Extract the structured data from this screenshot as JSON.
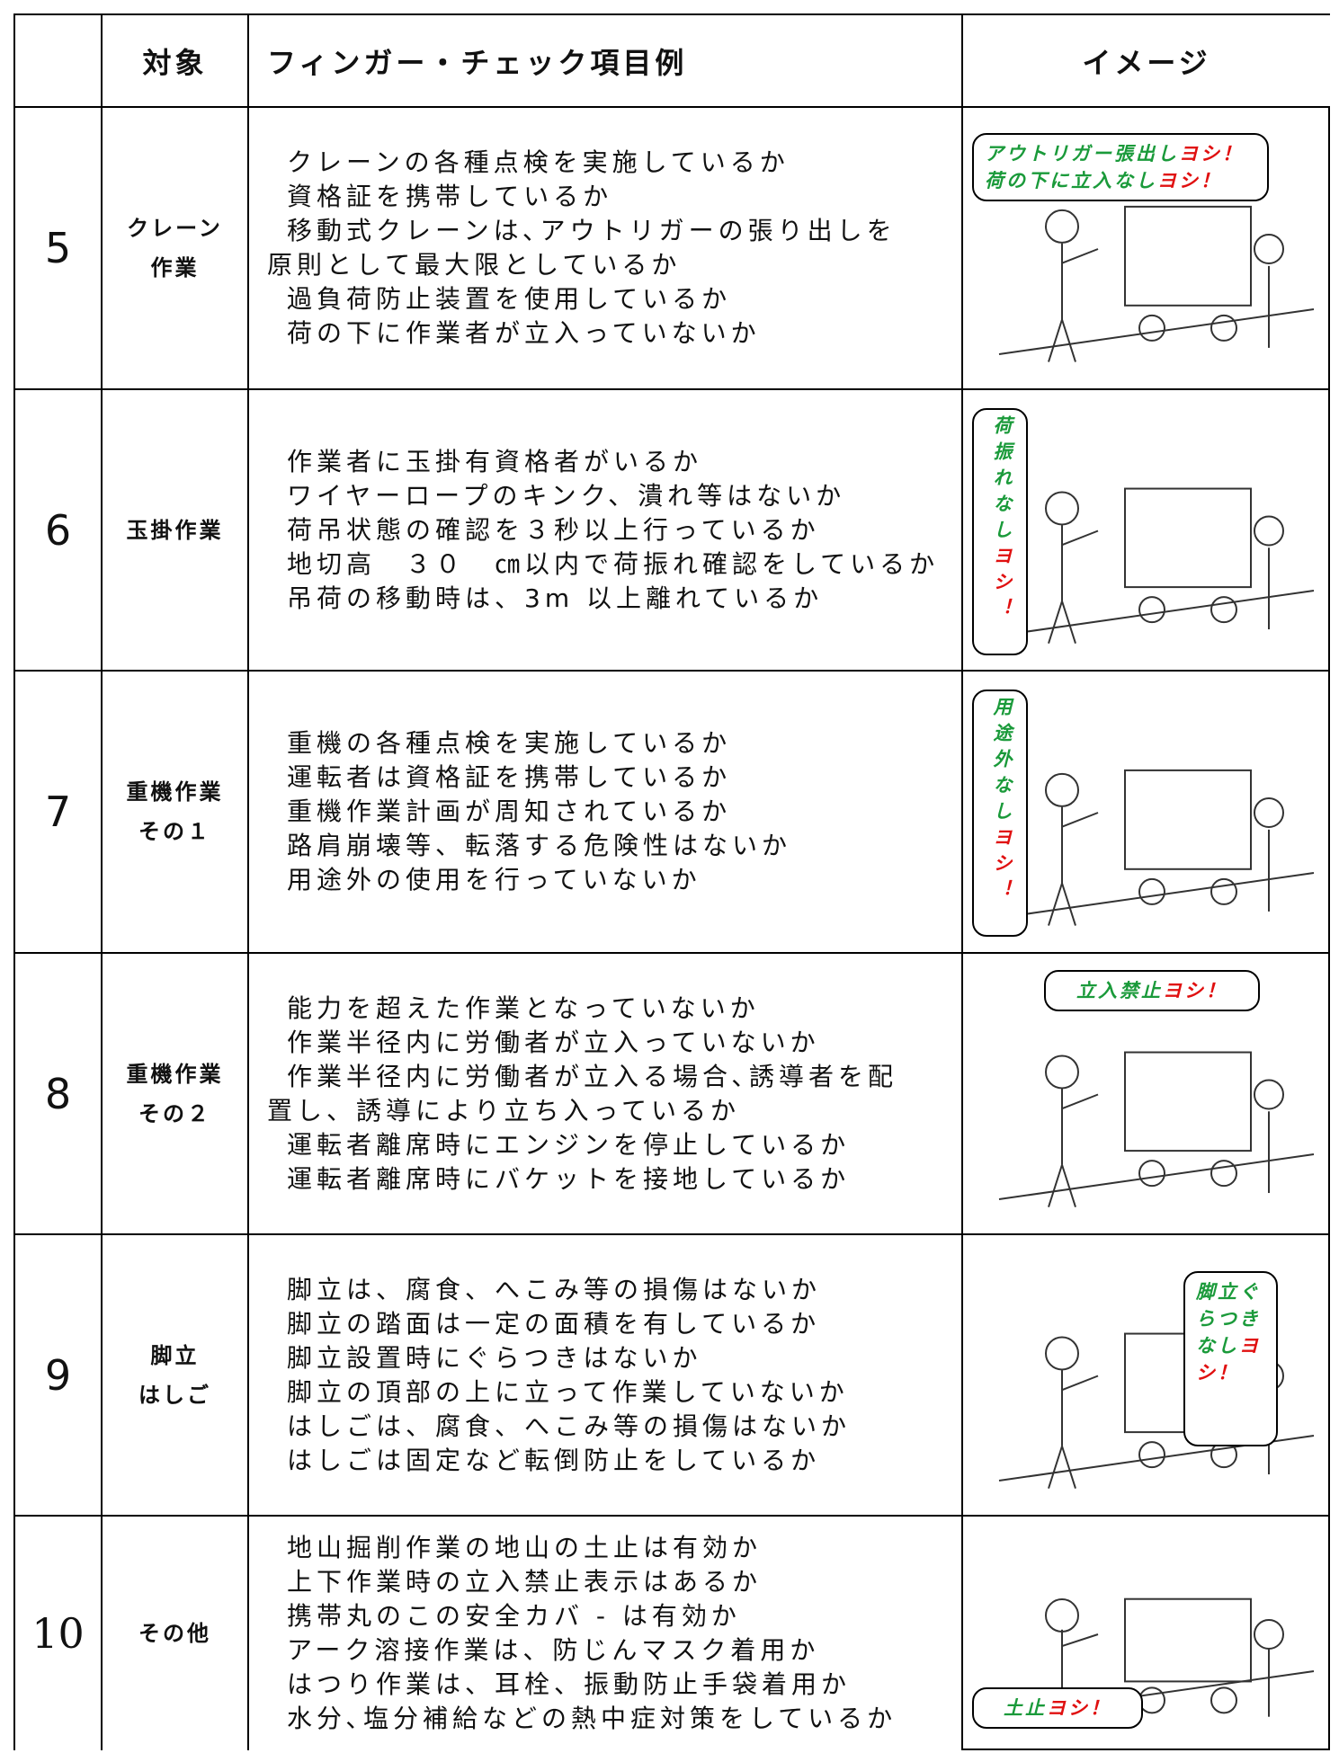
{
  "header": {
    "target": "対象",
    "items": "フィンガー・チェック項目例",
    "image": "イメージ"
  },
  "rows": [
    {
      "number": "5",
      "target": [
        "クレーン",
        "作業"
      ],
      "checks": [
        "クレーンの各種点検を実施しているか",
        "資格証を携帯しているか",
        "移動式クレーンは､アウトリガーの張り出しを",
        "原則として最大限としているか",
        "過負荷防止装置を使用しているか",
        "荷の下に作業者が立入っていないか"
      ],
      "bubble": [
        {
          "text": "アウトリガー張出し",
          "yoshi": "ヨシ！"
        },
        {
          "text": "荷の下に立入なし",
          "yoshi": "ヨシ！"
        }
      ]
    },
    {
      "number": "6",
      "target": [
        "玉掛作業"
      ],
      "checks": [
        "作業者に玉掛有資格者がいるか",
        "ワイヤーロープのキンク、潰れ等はないか",
        "荷吊状態の確認を３秒以上行っているか",
        "地切高　３０　㎝以内で荷振れ確認をしているか",
        "吊荷の移動時は、3m 以上離れているか"
      ],
      "bubble": [
        {
          "text": "荷振れなし",
          "yoshi": "ヨシ！"
        }
      ]
    },
    {
      "number": "7",
      "target": [
        "重機作業",
        "その１"
      ],
      "checks": [
        "重機の各種点検を実施しているか",
        "運転者は資格証を携帯しているか",
        "重機作業計画が周知されているか",
        "路肩崩壊等、転落する危険性はないか",
        "用途外の使用を行っていないか"
      ],
      "bubble": [
        {
          "text": "用途外なし",
          "yoshi": "ヨシ！"
        }
      ]
    },
    {
      "number": "8",
      "target": [
        "重機作業",
        "その２"
      ],
      "checks": [
        "能力を超えた作業となっていないか",
        "作業半径内に労働者が立入っていないか",
        "作業半径内に労働者が立入る場合､誘導者を配",
        "置し、誘導により立ち入っているか",
        "運転者離席時にエンジンを停止しているか",
        "運転者離席時にバケットを接地しているか"
      ],
      "bubble": [
        {
          "text": "立入禁止",
          "yoshi": "ヨシ！"
        }
      ]
    },
    {
      "number": "9",
      "target": [
        "脚立",
        "はしご"
      ],
      "checks": [
        "脚立は、腐食、へこみ等の損傷はないか",
        "脚立の踏面は一定の面積を有しているか",
        "脚立設置時にぐらつきはないか",
        "脚立の頂部の上に立って作業していないか",
        "はしごは、腐食、へこみ等の損傷はないか",
        "はしごは固定など転倒防止をしているか"
      ],
      "bubble": [
        {
          "text": "脚立ぐらつきなし",
          "yoshi": "ヨシ！"
        }
      ]
    },
    {
      "number": "10",
      "target": [
        "その他"
      ],
      "checks": [
        "地山掘削作業の地山の土止は有効か",
        "上下作業時の立入禁止表示はあるか",
        "携帯丸のこの安全カバ - は有効か",
        "アーク溶接作業は、防じんマスク着用か",
        "はつり作業は、耳栓、振動防止手袋着用か",
        "水分､塩分補給などの熱中症対策をしているか"
      ],
      "bubble": [
        {
          "text": "土止",
          "yoshi": "ヨシ！"
        }
      ]
    }
  ]
}
